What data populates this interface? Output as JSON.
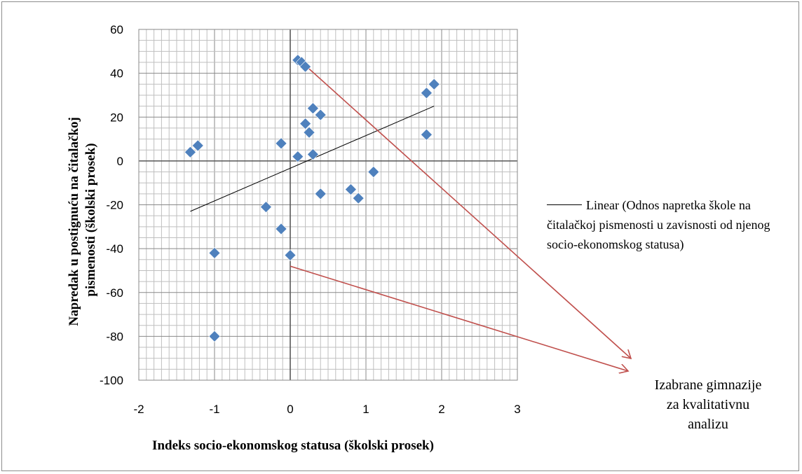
{
  "chart_data": {
    "type": "scatter",
    "xlabel": "Indeks socio-ekonomskog statusa (školski prosek)",
    "ylabel": "Napredak u postignuću na čitalačkoj pismenosti (školski prosek)",
    "xlim": [
      -2,
      3
    ],
    "ylim": [
      -100,
      60
    ],
    "x_ticks": [
      "-2",
      "-1",
      "0",
      "1",
      "2",
      "3"
    ],
    "y_ticks": [
      "60",
      "40",
      "20",
      "0",
      "-20",
      "-40",
      "-60",
      "-80",
      "-100"
    ],
    "grid": true,
    "points": [
      {
        "x": -1.32,
        "y": 4
      },
      {
        "x": -1.22,
        "y": 7
      },
      {
        "x": -1.0,
        "y": -42
      },
      {
        "x": -1.0,
        "y": -80
      },
      {
        "x": -0.32,
        "y": -21
      },
      {
        "x": -0.12,
        "y": 8
      },
      {
        "x": -0.12,
        "y": -31
      },
      {
        "x": 0.0,
        "y": -43
      },
      {
        "x": 0.1,
        "y": 46
      },
      {
        "x": 0.15,
        "y": 45
      },
      {
        "x": 0.2,
        "y": 43
      },
      {
        "x": 0.1,
        "y": 2
      },
      {
        "x": 0.2,
        "y": 17
      },
      {
        "x": 0.25,
        "y": 13
      },
      {
        "x": 0.3,
        "y": 24
      },
      {
        "x": 0.3,
        "y": 3
      },
      {
        "x": 0.4,
        "y": 21
      },
      {
        "x": 0.4,
        "y": -15
      },
      {
        "x": 0.8,
        "y": -13
      },
      {
        "x": 0.9,
        "y": -17
      },
      {
        "x": 1.1,
        "y": -5
      },
      {
        "x": 1.8,
        "y": 31
      },
      {
        "x": 1.8,
        "y": 12
      },
      {
        "x": 1.9,
        "y": 35
      }
    ],
    "trendline": {
      "x": [
        -1.32,
        1.9
      ],
      "y": [
        -23,
        25
      ]
    },
    "legend": {
      "label": "Linear (Odnos napretka škole na čitalačkoj pismenosti u zavisnosti od njenog socio-ekonomskog statusa)",
      "placement": "right"
    },
    "annotation": {
      "text": "Izabrane gimnazije za kvalitativnu analizu",
      "arrows_from": [
        {
          "x": 0.25,
          "y": 42
        },
        {
          "x": 0.0,
          "y": -48
        }
      ]
    },
    "colors": {
      "marker": "#4f81bd",
      "trendline": "#000000",
      "arrow": "#c0504d",
      "grid": "#bfbfbf"
    }
  }
}
